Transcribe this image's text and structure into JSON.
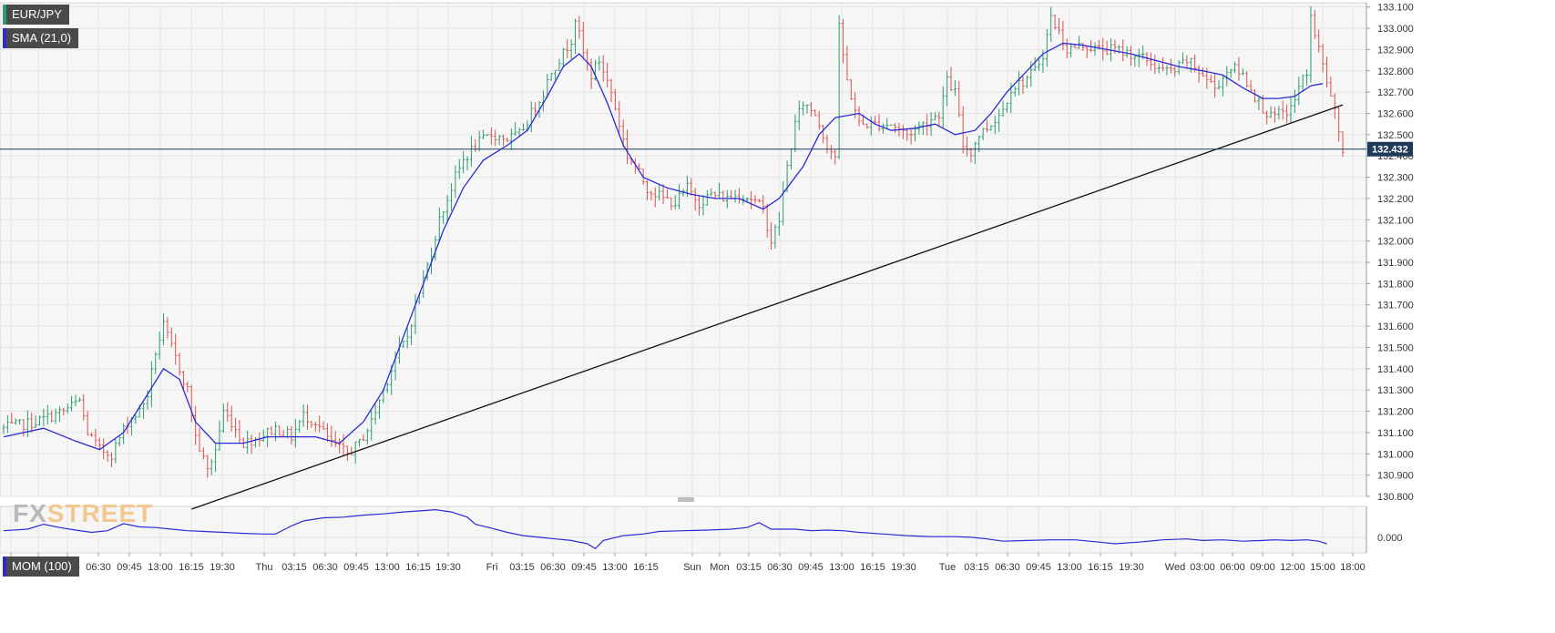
{
  "labels": {
    "symbol": "EUR/JPY",
    "sma": "SMA (21,0)",
    "mom": "MOM (100)",
    "logo_fx": "FX",
    "logo_street": "STREET"
  },
  "colors": {
    "up": "#2e9c6c",
    "down": "#d9534f",
    "sma": "#2b2bd6",
    "mom": "#2b2bd6",
    "trend": "#111111",
    "price_line": "#1f3a5a"
  },
  "chart_data": [
    {
      "type": "candlestick",
      "title": "EUR/JPY",
      "ylim": [
        130.8,
        133.12
      ],
      "y_ticks": [
        "133.100",
        "133.000",
        "132.900",
        "132.800",
        "132.700",
        "132.600",
        "132.500",
        "132.400",
        "132.300",
        "132.200",
        "132.100",
        "132.000",
        "131.900",
        "131.800",
        "131.700",
        "131.600",
        "131.500",
        "131.400",
        "131.300",
        "131.200",
        "131.100",
        "131.000",
        "130.900",
        "130.800"
      ],
      "x_ticks": [
        "Tue",
        "Wed",
        "03:15",
        "06:30",
        "09:45",
        "13:00",
        "16:15",
        "19:30",
        "Thu",
        "03:15",
        "06:30",
        "09:45",
        "13:00",
        "16:15",
        "19:30",
        "Fri",
        "03:15",
        "06:30",
        "09:45",
        "13:00",
        "16:15",
        "Sun",
        "Mon",
        "03:15",
        "06:30",
        "09:45",
        "13:00",
        "16:15",
        "19:30",
        "Tue",
        "03:15",
        "06:30",
        "09:45",
        "13:00",
        "16:15",
        "19:30",
        "Wed",
        "03:00",
        "06:00",
        "09:00",
        "12:00",
        "15:00",
        "18:00"
      ],
      "grid": true,
      "current_price": "132.432",
      "price_path": [
        [
          0,
          131.12
        ],
        [
          8,
          131.15
        ],
        [
          15,
          131.2
        ],
        [
          19,
          131.25
        ],
        [
          21,
          131.1
        ],
        [
          24,
          131.02
        ],
        [
          27,
          131.0
        ],
        [
          31,
          131.15
        ],
        [
          34,
          131.2
        ],
        [
          36,
          131.28
        ],
        [
          38,
          131.48
        ],
        [
          40,
          131.6
        ],
        [
          42,
          131.5
        ],
        [
          44,
          131.4
        ],
        [
          46,
          131.3
        ],
        [
          48,
          131.08
        ],
        [
          51,
          130.92
        ],
        [
          53,
          131.02
        ],
        [
          55,
          131.2
        ],
        [
          57,
          131.15
        ],
        [
          60,
          131.05
        ],
        [
          64,
          131.08
        ],
        [
          68,
          131.12
        ],
        [
          72,
          131.08
        ],
        [
          75,
          131.18
        ],
        [
          78,
          131.15
        ],
        [
          82,
          131.05
        ],
        [
          86,
          131.0
        ],
        [
          89,
          131.05
        ],
        [
          92,
          131.15
        ],
        [
          95,
          131.3
        ],
        [
          98,
          131.45
        ],
        [
          101,
          131.55
        ],
        [
          103,
          131.7
        ],
        [
          105,
          131.82
        ],
        [
          107,
          131.95
        ],
        [
          109,
          132.1
        ],
        [
          111,
          132.2
        ],
        [
          113,
          132.3
        ],
        [
          115,
          132.38
        ],
        [
          118,
          132.45
        ],
        [
          122,
          132.5
        ],
        [
          126,
          132.48
        ],
        [
          129,
          132.5
        ],
        [
          132,
          132.6
        ],
        [
          135,
          132.7
        ],
        [
          137,
          132.8
        ],
        [
          140,
          132.88
        ],
        [
          142,
          132.95
        ],
        [
          143,
          133.05
        ],
        [
          145,
          132.88
        ],
        [
          147,
          132.78
        ],
        [
          149,
          132.85
        ],
        [
          152,
          132.7
        ],
        [
          154,
          132.55
        ],
        [
          156,
          132.4
        ],
        [
          158,
          132.35
        ],
        [
          161,
          132.25
        ],
        [
          165,
          132.2
        ],
        [
          168,
          132.18
        ],
        [
          171,
          132.25
        ],
        [
          174,
          132.18
        ],
        [
          177,
          132.22
        ],
        [
          181,
          132.2
        ],
        [
          184,
          132.22
        ],
        [
          187,
          132.2
        ],
        [
          190,
          132.15
        ],
        [
          192,
          132.0
        ],
        [
          194,
          132.1
        ],
        [
          196,
          132.35
        ],
        [
          198,
          132.55
        ],
        [
          200,
          132.65
        ],
        [
          203,
          132.6
        ],
        [
          206,
          132.45
        ],
        [
          208,
          132.4
        ],
        [
          209,
          133.0
        ],
        [
          211,
          132.75
        ],
        [
          214,
          132.55
        ],
        [
          218,
          132.55
        ],
        [
          222,
          132.55
        ],
        [
          226,
          132.5
        ],
        [
          230,
          132.55
        ],
        [
          234,
          132.6
        ],
        [
          236,
          132.75
        ],
        [
          238,
          132.7
        ],
        [
          240,
          132.45
        ],
        [
          242,
          132.42
        ],
        [
          244,
          132.5
        ],
        [
          247,
          132.55
        ],
        [
          250,
          132.62
        ],
        [
          252,
          132.72
        ],
        [
          255,
          132.75
        ],
        [
          258,
          132.8
        ],
        [
          260,
          132.88
        ],
        [
          262,
          133.05
        ],
        [
          264,
          132.98
        ],
        [
          266,
          132.9
        ],
        [
          270,
          132.92
        ],
        [
          274,
          132.9
        ],
        [
          278,
          132.9
        ],
        [
          282,
          132.88
        ],
        [
          286,
          132.85
        ],
        [
          290,
          132.8
        ],
        [
          293,
          132.8
        ],
        [
          296,
          132.85
        ],
        [
          300,
          132.78
        ],
        [
          303,
          132.72
        ],
        [
          307,
          132.82
        ],
        [
          310,
          132.78
        ],
        [
          314,
          132.65
        ],
        [
          317,
          132.58
        ],
        [
          320,
          132.6
        ],
        [
          322,
          132.62
        ],
        [
          324,
          132.72
        ],
        [
          326,
          132.8
        ],
        [
          327,
          133.05
        ],
        [
          329,
          132.9
        ],
        [
          331,
          132.75
        ],
        [
          333,
          132.6
        ],
        [
          335,
          132.43
        ]
      ],
      "sma_series": [
        [
          0,
          131.08
        ],
        [
          10,
          131.12
        ],
        [
          18,
          131.06
        ],
        [
          24,
          131.02
        ],
        [
          30,
          131.1
        ],
        [
          36,
          131.28
        ],
        [
          40,
          131.4
        ],
        [
          44,
          131.35
        ],
        [
          48,
          131.15
        ],
        [
          53,
          131.05
        ],
        [
          60,
          131.05
        ],
        [
          66,
          131.08
        ],
        [
          72,
          131.08
        ],
        [
          78,
          131.08
        ],
        [
          84,
          131.05
        ],
        [
          90,
          131.15
        ],
        [
          95,
          131.3
        ],
        [
          100,
          131.55
        ],
        [
          105,
          131.8
        ],
        [
          110,
          132.05
        ],
        [
          115,
          132.25
        ],
        [
          120,
          132.38
        ],
        [
          126,
          132.45
        ],
        [
          131,
          132.52
        ],
        [
          136,
          132.68
        ],
        [
          140,
          132.82
        ],
        [
          144,
          132.88
        ],
        [
          147,
          132.82
        ],
        [
          151,
          132.65
        ],
        [
          155,
          132.45
        ],
        [
          160,
          132.3
        ],
        [
          166,
          132.25
        ],
        [
          172,
          132.22
        ],
        [
          178,
          132.2
        ],
        [
          184,
          132.2
        ],
        [
          190,
          132.15
        ],
        [
          194,
          132.2
        ],
        [
          200,
          132.35
        ],
        [
          204,
          132.5
        ],
        [
          208,
          132.58
        ],
        [
          214,
          132.6
        ],
        [
          218,
          132.55
        ],
        [
          222,
          132.52
        ],
        [
          228,
          132.53
        ],
        [
          233,
          132.55
        ],
        [
          238,
          132.5
        ],
        [
          243,
          132.52
        ],
        [
          247,
          132.6
        ],
        [
          251,
          132.7
        ],
        [
          256,
          132.8
        ],
        [
          260,
          132.88
        ],
        [
          265,
          132.93
        ],
        [
          270,
          132.92
        ],
        [
          276,
          132.9
        ],
        [
          282,
          132.88
        ],
        [
          288,
          132.85
        ],
        [
          294,
          132.82
        ],
        [
          300,
          132.8
        ],
        [
          305,
          132.78
        ],
        [
          310,
          132.72
        ],
        [
          315,
          132.67
        ],
        [
          319,
          132.67
        ],
        [
          323,
          132.68
        ],
        [
          327,
          132.73
        ],
        [
          330,
          132.74
        ]
      ],
      "trendline": [
        [
          47,
          130.74
        ],
        [
          335,
          132.64
        ]
      ]
    },
    {
      "type": "line",
      "title": "MOM (100)",
      "ylim": [
        -0.48,
        0.95
      ],
      "y_ticks": [
        "0.000"
      ],
      "series": [
        {
          "values": [
            [
              0,
              0.2
            ],
            [
              6,
              0.25
            ],
            [
              10,
              0.4
            ],
            [
              14,
              0.3
            ],
            [
              18,
              0.22
            ],
            [
              22,
              0.15
            ],
            [
              26,
              0.2
            ],
            [
              30,
              0.42
            ],
            [
              34,
              0.32
            ],
            [
              38,
              0.3
            ],
            [
              42,
              0.25
            ],
            [
              46,
              0.2
            ],
            [
              50,
              0.18
            ],
            [
              55,
              0.15
            ],
            [
              60,
              0.12
            ],
            [
              65,
              0.1
            ],
            [
              68,
              0.1
            ],
            [
              72,
              0.35
            ],
            [
              75,
              0.5
            ],
            [
              80,
              0.6
            ],
            [
              85,
              0.62
            ],
            [
              90,
              0.68
            ],
            [
              95,
              0.72
            ],
            [
              100,
              0.78
            ],
            [
              105,
              0.82
            ],
            [
              108,
              0.85
            ],
            [
              112,
              0.78
            ],
            [
              116,
              0.62
            ],
            [
              118,
              0.4
            ],
            [
              122,
              0.28
            ],
            [
              126,
              0.15
            ],
            [
              130,
              0.05
            ],
            [
              134,
              0.0
            ],
            [
              138,
              -0.05
            ],
            [
              142,
              -0.1
            ],
            [
              146,
              -0.2
            ],
            [
              148,
              -0.35
            ],
            [
              150,
              -0.1
            ],
            [
              155,
              0.05
            ],
            [
              160,
              0.1
            ],
            [
              164,
              0.18
            ],
            [
              170,
              0.2
            ],
            [
              176,
              0.22
            ],
            [
              182,
              0.25
            ],
            [
              186,
              0.3
            ],
            [
              189,
              0.45
            ],
            [
              192,
              0.25
            ],
            [
              198,
              0.25
            ],
            [
              202,
              0.2
            ],
            [
              206,
              0.22
            ],
            [
              210,
              0.2
            ],
            [
              214,
              0.15
            ],
            [
              220,
              0.1
            ],
            [
              226,
              0.05
            ],
            [
              232,
              0.02
            ],
            [
              238,
              0.02
            ],
            [
              242,
              0.0
            ],
            [
              246,
              -0.05
            ],
            [
              250,
              -0.12
            ],
            [
              256,
              -0.1
            ],
            [
              262,
              -0.08
            ],
            [
              268,
              -0.08
            ],
            [
              274,
              -0.15
            ],
            [
              278,
              -0.2
            ],
            [
              284,
              -0.15
            ],
            [
              290,
              -0.08
            ],
            [
              296,
              -0.05
            ],
            [
              300,
              -0.1
            ],
            [
              305,
              -0.08
            ],
            [
              310,
              -0.12
            ],
            [
              315,
              -0.1
            ],
            [
              318,
              -0.08
            ],
            [
              322,
              -0.1
            ],
            [
              326,
              -0.08
            ],
            [
              329,
              -0.12
            ],
            [
              331,
              -0.2
            ]
          ]
        }
      ]
    }
  ]
}
